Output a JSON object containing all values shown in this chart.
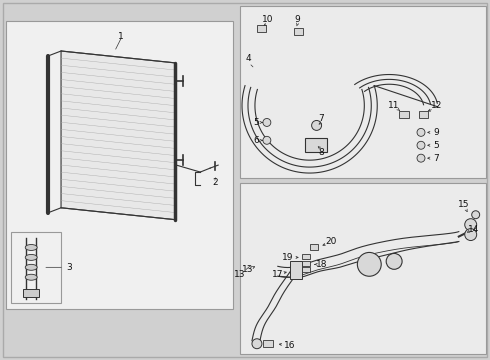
{
  "bg_color": "#f5f5f5",
  "outer_bg": "#d0d0d0",
  "box_bg": "#ebebeb",
  "line_color": "#333333",
  "label_color": "#111111",
  "fig_width": 4.9,
  "fig_height": 3.6,
  "dpi": 100
}
